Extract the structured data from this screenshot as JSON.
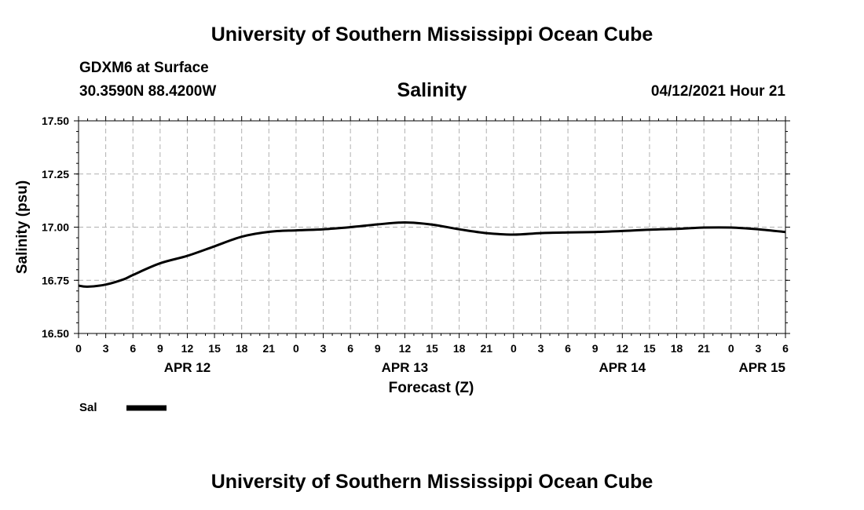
{
  "header": {
    "title": "University of Southern Mississippi Ocean Cube",
    "station": "GDXM6 at Surface",
    "coordinates": "30.3590N  88.4200W",
    "variable": "Salinity",
    "datetime": "04/12/2021 Hour 21"
  },
  "footer": {
    "title": "University of Southern Mississippi Ocean Cube"
  },
  "chart_data": {
    "type": "line",
    "ylabel": "Salinity (psu)",
    "xlabel": "Forecast (Z)",
    "ylim": [
      16.5,
      17.5
    ],
    "yticks": [
      "16.50",
      "16.75",
      "17.00",
      "17.25",
      "17.50"
    ],
    "x_start": "APR 12 00Z",
    "x_step_hours": 3,
    "xlim_hours": [
      0,
      78
    ],
    "xtick_labels": [
      "0",
      "3",
      "6",
      "9",
      "12",
      "15",
      "18",
      "21",
      "0",
      "3",
      "6",
      "9",
      "12",
      "15",
      "18",
      "21",
      "0",
      "3",
      "6",
      "9",
      "12",
      "15",
      "18",
      "21",
      "0",
      "3",
      "6"
    ],
    "date_labels": [
      {
        "label": "APR 12",
        "hour": 12
      },
      {
        "label": "APR 13",
        "hour": 36
      },
      {
        "label": "APR 14",
        "hour": 60
      },
      {
        "label": "APR 15",
        "hour": 78
      }
    ],
    "grid": true,
    "legend_position": "bottom-left",
    "series": [
      {
        "name": "Sal",
        "color": "#000000",
        "x_hours": [
          0,
          1,
          3,
          5,
          6,
          9,
          12,
          15,
          18,
          21,
          24,
          27,
          30,
          33,
          36,
          39,
          42,
          45,
          48,
          51,
          54,
          57,
          60,
          63,
          66,
          69,
          72,
          75,
          78
        ],
        "values": [
          16.725,
          16.72,
          16.73,
          16.755,
          16.775,
          16.83,
          16.865,
          16.91,
          16.955,
          16.978,
          16.985,
          16.99,
          17.0,
          17.013,
          17.022,
          17.012,
          16.99,
          16.972,
          16.965,
          16.972,
          16.975,
          16.977,
          16.982,
          16.988,
          16.992,
          16.998,
          16.998,
          16.99,
          16.977
        ]
      }
    ]
  }
}
